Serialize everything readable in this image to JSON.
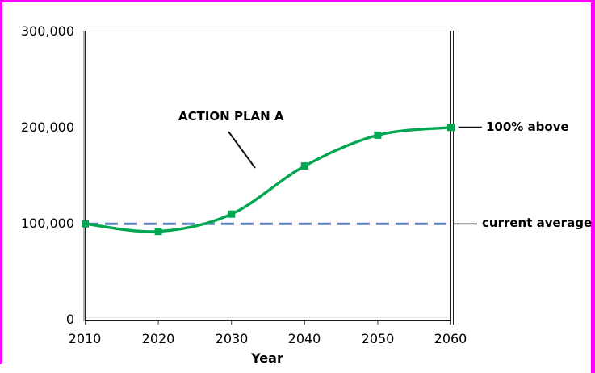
{
  "window": {
    "background_color": "#FFFFFF",
    "frame_color": "#FF00FF"
  },
  "chart_data": {
    "type": "line",
    "title": "",
    "xlabel": "Year",
    "ylabel": "",
    "xlim": [
      2010,
      2060
    ],
    "ylim": [
      0,
      300000
    ],
    "grid": false,
    "legend": "none",
    "x": [
      2010,
      2020,
      2030,
      2040,
      2050,
      2060
    ],
    "x_tick_labels": [
      "2010",
      "2020",
      "2030",
      "2040",
      "2050",
      "2060"
    ],
    "y_tick_labels_top_down": [
      "300,000",
      "200,000",
      "100,000",
      "0"
    ],
    "series": [
      {
        "name": "ACTION PLAN A",
        "values": [
          100000,
          92000,
          110000,
          160000,
          192000,
          200000
        ],
        "color": "#00A650",
        "marker": "square",
        "line_style": "solid",
        "smooth": true
      }
    ],
    "reference_line": {
      "label": "current average",
      "value": 100000,
      "color": "#5E86C1",
      "line_style": "dashed"
    },
    "annotations": [
      {
        "text": "ACTION PLAN A",
        "target": "rising curve of the plan series"
      },
      {
        "text": "100% above",
        "target": "2060 value of 200,000"
      },
      {
        "text": "current average",
        "target": "dashed line at 100,000"
      }
    ]
  }
}
